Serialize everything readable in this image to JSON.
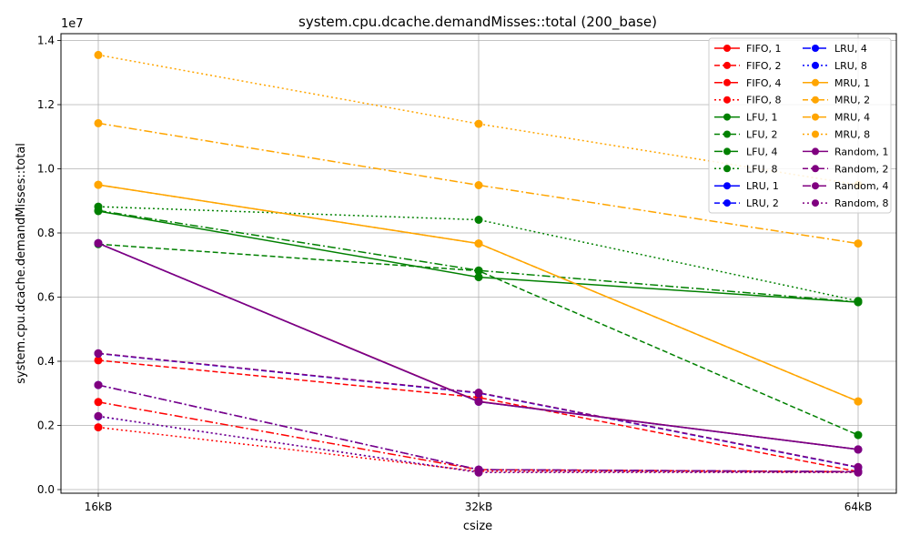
{
  "chart_data": {
    "type": "line",
    "title": "system.cpu.dcache.demandMisses::total (200_base)",
    "xlabel": "csize",
    "ylabel": "system.cpu.dcache.demandMisses::total",
    "y_scale_label": "1e7",
    "categories": [
      "16kB",
      "32kB",
      "64kB"
    ],
    "ylim": [
      -0.1,
      14.4
    ],
    "y_ticks": [
      0.0,
      0.2,
      0.4,
      0.6,
      0.8,
      1.0,
      1.2,
      1.4
    ],
    "y_tick_labels": [
      "0.0",
      "0.2",
      "0.4",
      "0.6",
      "0.8",
      "1.0",
      "1.2",
      "1.4"
    ],
    "grid": true,
    "legend_position": "top-right",
    "legend_columns": 2,
    "series": [
      {
        "name": "FIFO, 1",
        "color": "#ff0000",
        "dash": "solid",
        "values": [
          7.68,
          2.75,
          1.25
        ]
      },
      {
        "name": "FIFO, 2",
        "color": "#ff0000",
        "dash": "dashed",
        "values": [
          4.03,
          2.87,
          0.56
        ]
      },
      {
        "name": "FIFO, 4",
        "color": "#ff0000",
        "dash": "dashdot",
        "values": [
          2.73,
          0.62,
          0.56
        ]
      },
      {
        "name": "FIFO, 8",
        "color": "#ff0000",
        "dash": "dotted",
        "values": [
          1.94,
          0.57,
          0.55
        ]
      },
      {
        "name": "LFU, 1",
        "color": "#008000",
        "dash": "solid",
        "values": [
          8.68,
          6.62,
          5.84
        ]
      },
      {
        "name": "LFU, 2",
        "color": "#008000",
        "dash": "dashed",
        "values": [
          7.65,
          6.82,
          1.7
        ]
      },
      {
        "name": "LFU, 4",
        "color": "#008000",
        "dash": "dashdot",
        "values": [
          8.7,
          6.83,
          5.85
        ]
      },
      {
        "name": "LFU, 8",
        "color": "#008000",
        "dash": "dotted",
        "values": [
          8.82,
          8.41,
          5.88
        ]
      },
      {
        "name": "LRU, 1",
        "color": "#0000ff",
        "dash": "solid",
        "values": [
          7.68,
          2.74,
          1.25
        ]
      },
      {
        "name": "LRU, 2",
        "color": "#0000ff",
        "dash": "dashed",
        "values": [
          4.24,
          3.01,
          0.69
        ]
      },
      {
        "name": "LRU, 4",
        "color": "#0000ff",
        "dash": "dashdot",
        "values": [
          3.26,
          0.62,
          0.56
        ]
      },
      {
        "name": "LRU, 8",
        "color": "#0000ff",
        "dash": "dotted",
        "values": [
          2.28,
          0.54,
          0.54
        ]
      },
      {
        "name": "MRU, 1",
        "color": "#ffa500",
        "dash": "solid",
        "values": [
          9.5,
          7.67,
          2.75
        ]
      },
      {
        "name": "MRU, 2",
        "color": "#ffa500",
        "dash": "dashed",
        "values": [
          9.5,
          7.67,
          2.75
        ]
      },
      {
        "name": "MRU, 4",
        "color": "#ffa500",
        "dash": "dashdot",
        "values": [
          11.42,
          9.49,
          7.67
        ]
      },
      {
        "name": "MRU, 8",
        "color": "#ffa500",
        "dash": "dotted",
        "values": [
          13.55,
          11.4,
          9.5
        ]
      },
      {
        "name": "Random, 1",
        "color": "#800080",
        "dash": "solid",
        "values": [
          7.68,
          2.74,
          1.25
        ]
      },
      {
        "name": "Random, 2",
        "color": "#800080",
        "dash": "dashed",
        "values": [
          4.25,
          3.02,
          0.7
        ]
      },
      {
        "name": "Random, 4",
        "color": "#800080",
        "dash": "dashdot",
        "values": [
          3.26,
          0.62,
          0.56
        ]
      },
      {
        "name": "Random, 8",
        "color": "#800080",
        "dash": "dotted",
        "values": [
          2.29,
          0.53,
          0.53
        ]
      }
    ]
  }
}
